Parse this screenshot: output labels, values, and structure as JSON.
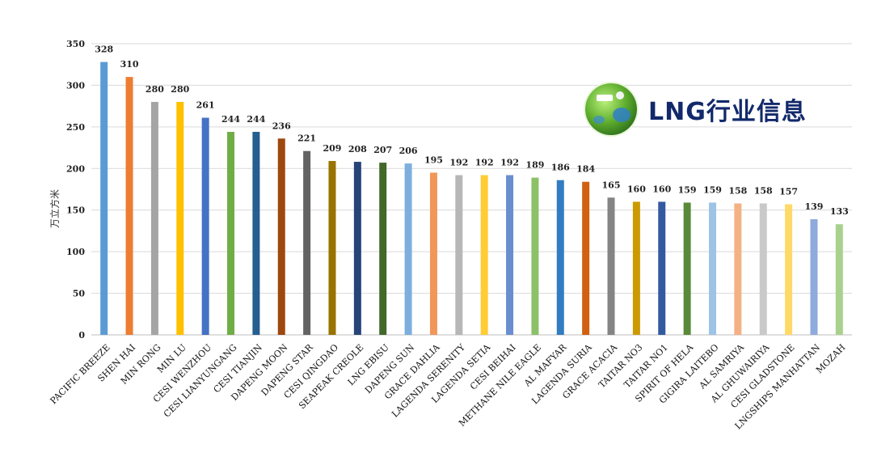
{
  "chart_data": {
    "type": "bar",
    "title": "",
    "xlabel": "",
    "ylabel": "万立方米",
    "ylim": [
      0,
      350
    ],
    "yticks": [
      0,
      50,
      100,
      150,
      200,
      250,
      300,
      350
    ],
    "grid": true,
    "categories": [
      "PACIFIC BREEZE",
      "SHEN HAI",
      "MIN RONG",
      "MIN LU",
      "CESI WENZHOU",
      "CESI LIANYUNGANG",
      "CESI TIANJIN",
      "DAPENG MOON",
      "DAPENG STAR",
      "CESI QINGDAO",
      "SEAPEAK CREOLE",
      "LNG EBISU",
      "DAPENG SUN",
      "GRACE DAHLIA",
      "LAGENDA SERENITY",
      "LAGENDA SETIA",
      "CESI BEIHAI",
      "METHANE NILE EAGLE",
      "AL MAFYAR",
      "LAGENDA SURIA",
      "GRACE ACACIA",
      "TAITAR NO3",
      "TAITAR NO1",
      "SPIRIT OF HELA",
      "GIGIRA LAITEBO",
      "AL SAMRIYA",
      "AL GHUWAIRIYA",
      "CESI GLADSTONE",
      "LNGSHIPS MANHATTAN",
      "MOZAH"
    ],
    "values": [
      328,
      310,
      280,
      280,
      261,
      244,
      244,
      236,
      221,
      209,
      208,
      207,
      206,
      195,
      192,
      192,
      192,
      189,
      186,
      184,
      165,
      160,
      160,
      159,
      159,
      158,
      158,
      157,
      139,
      133
    ],
    "colors": [
      "#5b9bd5",
      "#ed7d31",
      "#a5a5a5",
      "#ffc000",
      "#4472c4",
      "#70ad47",
      "#255e91",
      "#9e480e",
      "#636363",
      "#997300",
      "#264478",
      "#43682b",
      "#7cafdd",
      "#f1975a",
      "#b7b7b7",
      "#ffcd33",
      "#698ed0",
      "#8cc168",
      "#327dc2",
      "#d26012",
      "#848484",
      "#cc9a00",
      "#335aa1",
      "#5a8a39",
      "#9dc3e6",
      "#f4b183",
      "#c9c9c9",
      "#ffd966",
      "#8faadc",
      "#a9d18e"
    ]
  },
  "logo": {
    "text": "LNG行业信息",
    "icon": "globe-icon"
  }
}
